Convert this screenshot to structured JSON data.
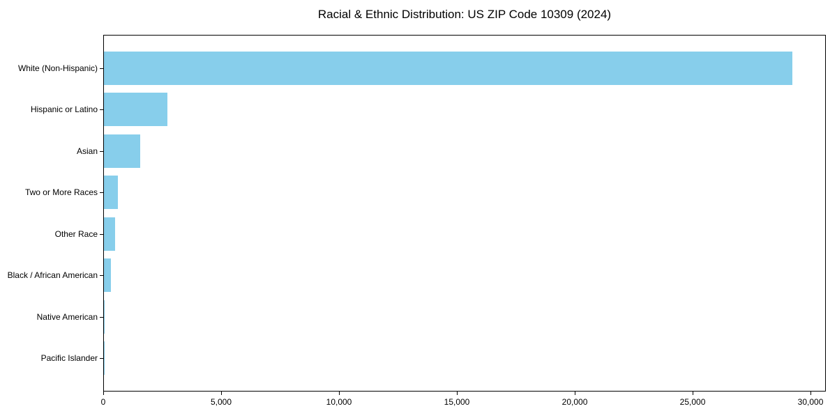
{
  "chart_data": {
    "type": "bar",
    "orientation": "horizontal",
    "title": "Racial & Ethnic Distribution: US ZIP Code 10309 (2024)",
    "categories": [
      "White (Non-Hispanic)",
      "Hispanic or Latino",
      "Asian",
      "Two or More Races",
      "Other Race",
      "Black / African American",
      "Native American",
      "Pacific Islander"
    ],
    "values": [
      29270,
      2700,
      1550,
      580,
      470,
      310,
      20,
      10
    ],
    "xlabel": "",
    "ylabel": "",
    "xlim": [
      0,
      30650
    ],
    "x_ticks": [
      {
        "value": 0,
        "label": "0"
      },
      {
        "value": 5000,
        "label": "5,000"
      },
      {
        "value": 10000,
        "label": "10,000"
      },
      {
        "value": 15000,
        "label": "15,000"
      },
      {
        "value": 20000,
        "label": "20,000"
      },
      {
        "value": 25000,
        "label": "25,000"
      },
      {
        "value": 30000,
        "label": "30,000"
      }
    ],
    "bar_color": "#87CEEB",
    "grid": false,
    "legend": null
  }
}
